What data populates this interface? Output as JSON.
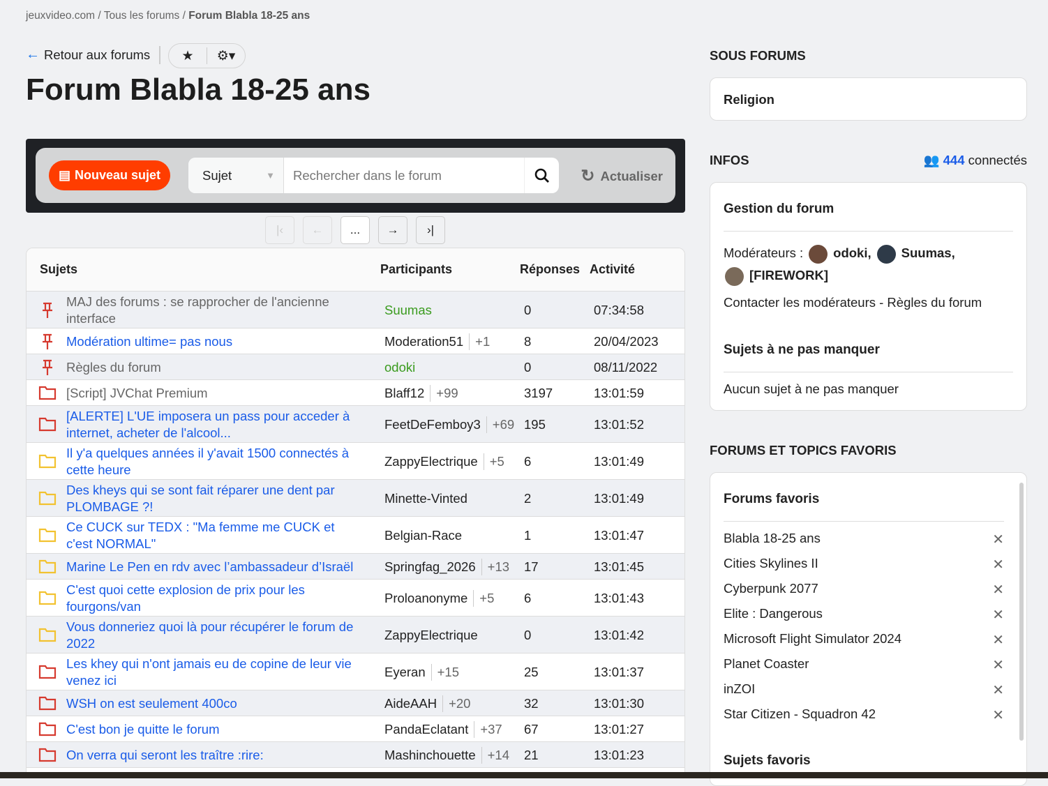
{
  "breadcrumb": {
    "site": "jeuxvideo.com",
    "sep": "/",
    "all": "Tous les forums",
    "current": "Forum Blabla 18-25 ans"
  },
  "back_label": "Retour aux forums",
  "title": "Forum Blabla 18-25 ans",
  "toolbar": {
    "new_topic": "Nouveau sujet",
    "search_type": "Sujet",
    "search_placeholder": "Rechercher dans le forum",
    "refresh": "Actualiser"
  },
  "pager": {
    "first": "K",
    "prev": "←",
    "current": "...",
    "next": "→",
    "last": "›|"
  },
  "table": {
    "headers": {
      "subjects": "Sujets",
      "participants": "Participants",
      "replies": "Réponses",
      "activity": "Activité"
    },
    "rows": [
      {
        "icon": "pin",
        "title": "MAJ des forums : se rapprocher de l'ancienne interface",
        "title_color": "gray",
        "author": "Suumas",
        "author_color": "green",
        "plus": "",
        "replies": "0",
        "activity": "07:34:58",
        "lines": 2
      },
      {
        "icon": "pin",
        "title": "Modération ultime= pas nous",
        "title_color": "blue",
        "author": "Moderation51",
        "plus": "+1",
        "replies": "8",
        "activity": "20/04/2023",
        "lines": 1
      },
      {
        "icon": "pin",
        "title": "Règles du forum",
        "title_color": "gray",
        "author": "odoki",
        "author_color": "green",
        "plus": "",
        "replies": "0",
        "activity": "08/11/2022",
        "lines": 1
      },
      {
        "icon": "folder-red",
        "title": "[Script] JVChat Premium",
        "title_color": "gray",
        "author": "Blaff12",
        "plus": "+99",
        "replies": "3197",
        "activity": "13:01:59",
        "lines": 1
      },
      {
        "icon": "folder-red",
        "title": "[ALERTE] L'UE imposera un pass pour acceder à internet, acheter de l'alcool...",
        "title_color": "blue",
        "author": "FeetDeFemboy3",
        "plus": "+69",
        "replies": "195",
        "activity": "13:01:52",
        "lines": 2
      },
      {
        "icon": "folder-yellow",
        "title": "Il y'a quelques années il y'avait 1500 connectés à cette heure",
        "title_color": "blue",
        "author": "ZappyElectrique",
        "plus": "+5",
        "replies": "6",
        "activity": "13:01:49",
        "lines": 2
      },
      {
        "icon": "folder-yellow",
        "title": "Des kheys qui se sont fait réparer une dent par PLOMBAGE ?!",
        "title_color": "blue",
        "author": "Minette-Vinted",
        "plus": "",
        "replies": "2",
        "activity": "13:01:49",
        "lines": 2
      },
      {
        "icon": "folder-yellow",
        "title": "Ce CUCK sur TEDX : \"Ma femme me CUCK et c'est NORMAL\"",
        "title_color": "blue",
        "author": "Belgian-Race",
        "plus": "",
        "replies": "1",
        "activity": "13:01:47",
        "lines": 2
      },
      {
        "icon": "folder-yellow",
        "title": "Marine Le Pen en rdv avec l’ambassadeur d’Israël",
        "title_color": "blue",
        "author": "Springfag_2026",
        "plus": "+13",
        "replies": "17",
        "activity": "13:01:45",
        "lines": 1
      },
      {
        "icon": "folder-yellow",
        "title": "C'est quoi cette explosion de prix pour les fourgons/van",
        "title_color": "blue",
        "author": "Proloanonyme",
        "plus": "+5",
        "replies": "6",
        "activity": "13:01:43",
        "lines": 2
      },
      {
        "icon": "folder-yellow",
        "title": "Vous donneriez quoi là pour récupérer le forum de 2022",
        "title_color": "blue",
        "author": "ZappyElectrique",
        "plus": "",
        "replies": "0",
        "activity": "13:01:42",
        "lines": 2
      },
      {
        "icon": "folder-red",
        "title": "Les khey qui n'ont jamais eu de copine de leur vie venez ici",
        "title_color": "blue",
        "author": "Eyeran",
        "plus": "+15",
        "replies": "25",
        "activity": "13:01:37",
        "lines": 2
      },
      {
        "icon": "folder-red",
        "title": "WSH on est seulement 400co",
        "title_color": "blue",
        "author": "AideAAH",
        "plus": "+20",
        "replies": "32",
        "activity": "13:01:30",
        "lines": 1
      },
      {
        "icon": "folder-red",
        "title": "C'est bon je quitte le forum",
        "title_color": "blue",
        "author": "PandaEclatant",
        "plus": "+37",
        "replies": "67",
        "activity": "13:01:27",
        "lines": 1
      },
      {
        "icon": "folder-red",
        "title": "On verra qui seront les traître :rire:",
        "title_color": "blue",
        "author": "Mashinchouette",
        "plus": "+14",
        "replies": "21",
        "activity": "13:01:23",
        "lines": 1
      }
    ]
  },
  "sidebar": {
    "sub_forums_title": "SOUS FORUMS",
    "sub_forums": [
      "Religion"
    ],
    "infos_title": "INFOS",
    "connected_count": "444",
    "connected_label": "connectés",
    "gestion_title": "Gestion du forum",
    "moderators_label": "Modérateurs :",
    "moderators": [
      "odoki,",
      "Suumas,",
      "[FIREWORK]"
    ],
    "contact": "Contacter les modérateurs - Règles du forum",
    "must_see_title": "Sujets à ne pas manquer",
    "must_see_empty": "Aucun sujet à ne pas manquer",
    "favorites_title": "FORUMS ET TOPICS FAVORIS",
    "fav_forums_title": "Forums favoris",
    "fav_forums": [
      "Blabla 18-25 ans",
      "Cities Skylines II",
      "Cyberpunk 2077",
      "Elite : Dangerous",
      "Microsoft Flight Simulator 2024",
      "Planet Coaster",
      "inZOI",
      "Star Citizen - Squadron 42"
    ],
    "fav_topics_title": "Sujets favoris"
  },
  "colors": {
    "accent": "#ff3d00",
    "link": "#1a5ce8",
    "moderator": "#3a9b1e",
    "folder_hot": "#d63a2f",
    "folder_normal": "#f2c230"
  }
}
